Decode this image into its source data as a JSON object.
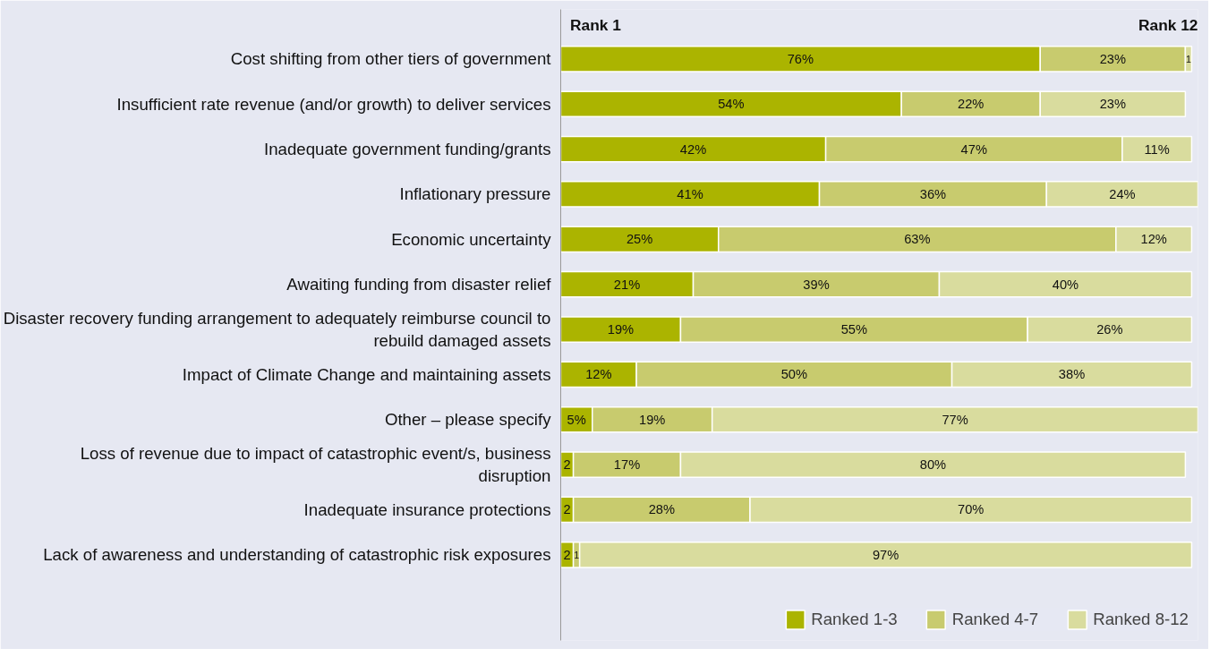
{
  "chart_data": {
    "type": "bar",
    "orientation": "horizontal",
    "stacked": true,
    "categories": [
      "Cost shifting from other tiers of government",
      "Insufficient rate revenue (and/or growth) to deliver services",
      "Inadequate government funding/grants",
      "Inflationary pressure",
      "Economic uncertainty",
      "Awaiting funding from disaster relief",
      "Disaster recovery funding arrangement to adequately reimburse council to rebuild damaged assets",
      "Impact of Climate Change and maintaining assets",
      "Other – please specify",
      "Loss of revenue due to impact of catastrophic event/s, business disruption",
      "Inadequate insurance protections",
      "Lack of awareness and understanding of catastrophic risk exposures"
    ],
    "series": [
      {
        "name": "Ranked 1-3",
        "color": "#abb400",
        "values": [
          76,
          54,
          42,
          41,
          25,
          21,
          19,
          12,
          5,
          2,
          2,
          2
        ],
        "value_labels": [
          "76%",
          "54%",
          "42%",
          "41%",
          "25%",
          "21%",
          "19%",
          "12%",
          "5%",
          "2",
          "2",
          "2"
        ]
      },
      {
        "name": "Ranked 4-7",
        "color": "#c8cb6e",
        "values": [
          23,
          22,
          47,
          36,
          63,
          39,
          55,
          50,
          19,
          17,
          28,
          1
        ],
        "value_labels": [
          "23%",
          "22%",
          "47%",
          "36%",
          "63%",
          "39%",
          "55%",
          "50%",
          "19%",
          "17%",
          "28%",
          "1"
        ]
      },
      {
        "name": "Ranked 8-12",
        "color": "#d9dc9e",
        "values": [
          1,
          23,
          11,
          24,
          12,
          40,
          26,
          38,
          77,
          80,
          70,
          97
        ],
        "value_labels": [
          "1",
          "23%",
          "11%",
          "24%",
          "12%",
          "40%",
          "26%",
          "38%",
          "77%",
          "80%",
          "70%",
          "97%"
        ]
      }
    ],
    "xlim": [
      0,
      101
    ],
    "tick_labels": "y",
    "grid": false,
    "legend": "bottom right",
    "annotations": [
      "Rank 1",
      "Rank 12"
    ]
  }
}
